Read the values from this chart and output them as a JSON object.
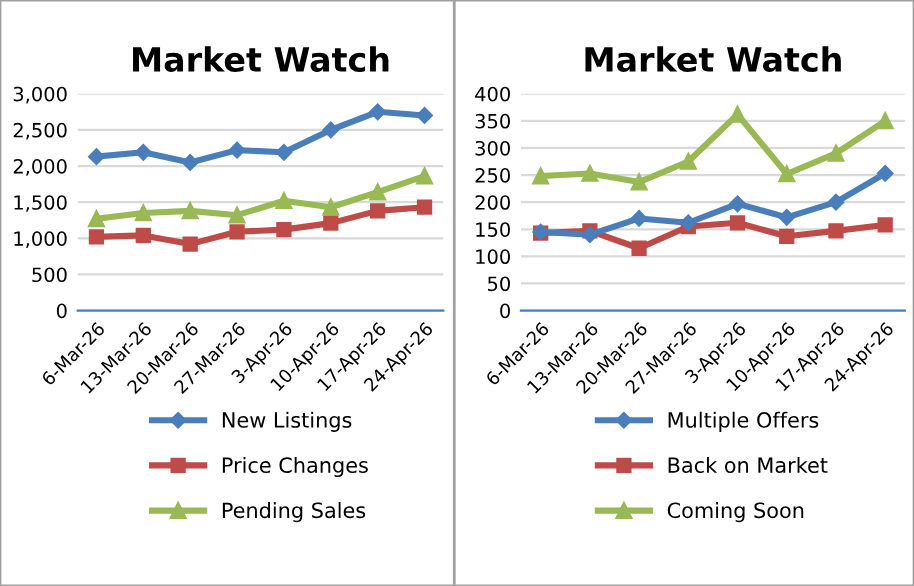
{
  "chart_data": [
    {
      "type": "line",
      "title": "Market Watch",
      "categories": [
        "6-Mar-26",
        "13-Mar-26",
        "20-Mar-26",
        "27-Mar-26",
        "3-Apr-26",
        "10-Apr-26",
        "17-Apr-26",
        "24-Apr-26"
      ],
      "ylim": [
        0,
        3000
      ],
      "yticks": [
        {
          "value": 0,
          "label": "0"
        },
        {
          "value": 500,
          "label": "500"
        },
        {
          "value": 1000,
          "label": "1,000"
        },
        {
          "value": 1500,
          "label": "1,500"
        },
        {
          "value": 2000,
          "label": "2,000"
        },
        {
          "value": 2500,
          "label": "2,500"
        },
        {
          "value": 3000,
          "label": "3,000"
        }
      ],
      "grid": "y",
      "legend": "bottom",
      "series": [
        {
          "name": "New Listings",
          "color": "#4a7ebb",
          "marker": "diamond",
          "values": [
            2130,
            2190,
            2050,
            2220,
            2190,
            2500,
            2750,
            2700
          ]
        },
        {
          "name": "Price Changes",
          "color": "#be4b48",
          "marker": "square",
          "values": [
            1020,
            1040,
            920,
            1090,
            1120,
            1210,
            1380,
            1430
          ]
        },
        {
          "name": "Pending Sales",
          "color": "#98b954",
          "marker": "triangle",
          "values": [
            1270,
            1350,
            1380,
            1320,
            1520,
            1430,
            1640,
            1860
          ]
        }
      ]
    },
    {
      "type": "line",
      "title": "Market Watch",
      "categories": [
        "6-Mar-26",
        "13-Mar-26",
        "20-Mar-26",
        "27-Mar-26",
        "3-Apr-26",
        "10-Apr-26",
        "17-Apr-26",
        "24-Apr-26"
      ],
      "ylim": [
        0,
        400
      ],
      "yticks": [
        0,
        50,
        100,
        150,
        200,
        250,
        300,
        350,
        400
      ],
      "grid": "y",
      "legend": "bottom",
      "series": [
        {
          "name": "Multiple Offers",
          "color": "#4a7ebb",
          "marker": "diamond",
          "values": [
            145,
            140,
            170,
            162,
            197,
            172,
            200,
            253
          ]
        },
        {
          "name": "Back on Market",
          "color": "#be4b48",
          "marker": "square",
          "values": [
            143,
            147,
            115,
            155,
            162,
            137,
            147,
            158
          ]
        },
        {
          "name": "Coming Soon",
          "color": "#98b954",
          "marker": "triangle",
          "values": [
            248,
            253,
            237,
            275,
            362,
            252,
            290,
            350
          ]
        }
      ]
    }
  ]
}
